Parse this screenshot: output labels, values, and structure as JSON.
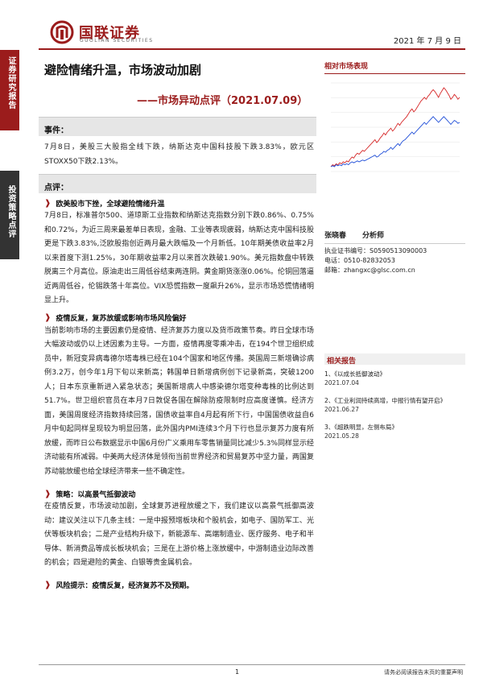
{
  "header": {
    "logo_cn": "国联证券",
    "logo_en": "GUOLIAN SECURITIES",
    "date": "2021 年 7 月 9 日"
  },
  "sidebar": {
    "tag1": "证券研究报告",
    "tag2": "投资策略点评"
  },
  "title": "避险情绪升温，市场波动加剧",
  "subtitle": "——市场异动点评（2021.07.09）",
  "events": {
    "heading": "事件：",
    "text": "7月8日，美股三大股指全线下跌，纳斯达克中国科技股下跌3.83%，欧元区STOXX50下跌2.13%。"
  },
  "comments": {
    "heading": "点评：",
    "sections": [
      {
        "title": "欧美股市下挫，全球避险情绪升温",
        "text": "7月8日，标准普尔500、道琼斯工业指数和纳斯达克指数分别下跌0.86%、0.75%和0.72%，为近三周来最差单日表现，金融、工业等表现疲弱，纳斯达克中国科技股更是下跌3.83%,泛欧股指创近两月最大跌幅及一个月新低。10年期美债收益率2月以来首度下测1.25%，30年期收益率2月以来首次跌破1.90%。美元指数盘中转跌脱离三个月高位。原油走出三周低谷结束两连阴。黄金期货涨涨0.06%。伦铜回落逼近两周低谷，伦锡跌落十年高位。VIX恐慌指数一度飙升26%，显示市场恐慌情绪明显上升。"
      },
      {
        "title": "疫情反复，复苏放缓或影响市场风险偏好",
        "text": "当前影响市场的主要因素仍是疫情、经济复苏力度以及货币政策节奏。昨日全球市场大幅波动或仍以上述因素为主导。一方面，疫情再度零乘冲击，在194个世卫组织成员中，新冠变异病毒德尔塔毒株已经在104个国家和地区传播。英国周三新增确诊病例3.2万，创今年1月下旬以来新高；韩国单日新增病例创下记录新高，突破1200人；日本东京重新进入紧急状态；美国新增病人中感染德尔塔变种毒株的比例达到51.7%。世卫组织官员在本月7日敦促各国在解除防疫限制时应高度谨慎。经济方面，美国周度经济指数持续回落，国债收益率自4月起有所下行，中国国债收益自6月中旬起同样呈现较为明显回落，此外国内PMI连续3个月下行也显示复苏力度有所放缓，而昨日公布数据显示中国6月份广义乘用车零售销量同比减少5.3%同样显示经济动能有所减弱。中美两大经济体是领衔当前世界经济和贸易复苏中坚力量，两国复苏动能放缓也给全球经济带来一些不确定性。"
      },
      {
        "title": "策略：以高景气抵御波动",
        "text": "在疫情反复，市场波动加剧，全球复苏进程放缓之下，我们建议以高景气抵御高波动：建议关注以下几条主线：一是中报预增板块和个股机会，如电子、国防军工、光伏等板块机会；二是产业结构升级下，新能源车、高端制造业、医疗服务、电子和半导体、新消费品等成长板块机会；三是在上游价格上涨放缓中，中游制造业边际改善的机会；四是避险的黄金、白银等贵金属机会。"
      },
      {
        "title": "风险提示：疫情反复，经济复苏不及预期。",
        "text": ""
      }
    ]
  },
  "right_panel": {
    "chart_heading": "相对市场表现",
    "analyst": {
      "name": "张晓春",
      "role": "分析师",
      "license": "执业证书编号：S0590513090003",
      "phone": "电话：0510-82832053",
      "email": "邮箱：zhangxc@glsc.com.cn"
    },
    "related_heading": "相关报告",
    "related": [
      {
        "title": "1、《以成长抵御波动》",
        "date": "2021.07.04"
      },
      {
        "title": "2、《工业利润持续高增，中报行情有望开启》",
        "date": "2021.06.27"
      },
      {
        "title": "3、《超跌明显，左侧布局》",
        "date": "2021.05.28"
      }
    ]
  },
  "chart_data": {
    "type": "line",
    "series": [
      {
        "name": "",
        "color": "#d62728",
        "values": [
          0,
          2,
          1,
          3,
          2,
          4,
          3,
          5,
          4,
          6,
          5,
          8,
          10,
          9,
          12,
          14,
          13,
          15,
          17,
          16,
          18,
          20,
          22,
          24,
          26,
          28,
          25,
          27,
          30,
          32,
          35,
          33,
          36,
          38,
          40,
          37,
          39,
          42,
          45,
          43,
          46,
          48,
          50,
          52,
          55,
          58,
          60,
          57,
          59,
          62,
          65,
          68,
          70,
          72,
          70,
          73,
          75,
          78,
          80,
          78,
          75,
          72,
          76,
          79,
          82,
          80,
          77,
          74,
          70,
          72,
          75,
          73,
          70,
          72
        ]
      },
      {
        "name": "",
        "color": "#1f4ed8",
        "values": [
          0,
          1,
          0,
          2,
          1,
          2,
          1,
          3,
          2,
          3,
          2,
          4,
          5,
          4,
          5,
          6,
          5,
          6,
          7,
          6,
          7,
          8,
          9,
          10,
          11,
          12,
          10,
          11,
          13,
          14,
          16,
          15,
          17,
          18,
          20,
          18,
          20,
          22,
          24,
          22,
          25,
          27,
          28,
          30,
          32,
          34,
          36,
          34,
          36,
          38,
          40,
          42,
          44,
          46,
          44,
          46,
          48,
          50,
          52,
          50,
          48,
          46,
          48,
          50,
          52,
          50,
          48,
          46,
          44,
          46,
          48,
          47,
          45,
          46
        ]
      }
    ]
  },
  "footer": {
    "page": "1",
    "disclaimer": "请务必阅读报告末页的重要声明"
  }
}
